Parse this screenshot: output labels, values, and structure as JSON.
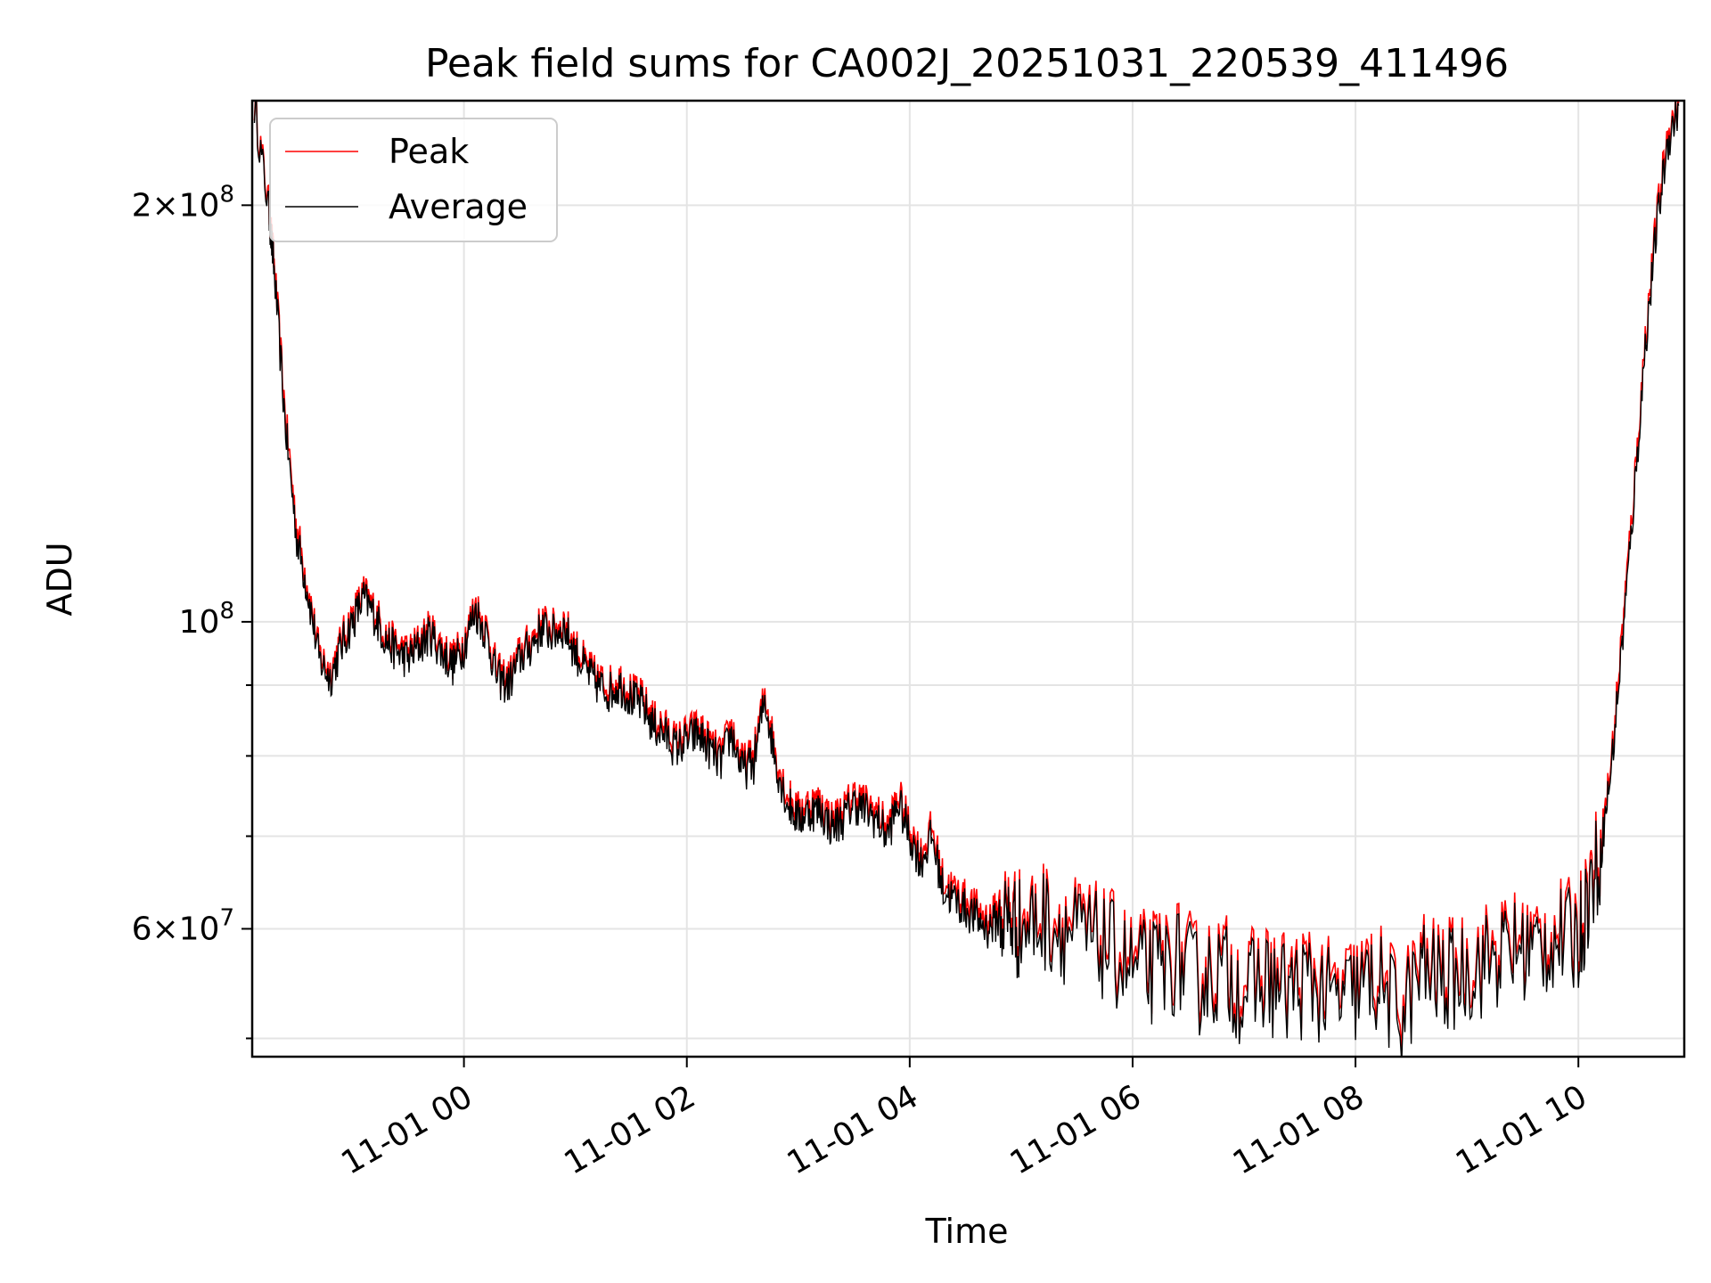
{
  "chart_data": {
    "type": "line",
    "title": "Peak field sums for CA002J_20251031_220539_411496",
    "xlabel": "Time",
    "ylabel": "ADU",
    "yscale": "log",
    "grid": true,
    "legend_position": "top-left",
    "xlim_hours": [
      -1.9,
      10.95
    ],
    "ylim": [
      48500000,
      238000000
    ],
    "x_ticks": [
      {
        "hour": 0,
        "label": "11-01 00"
      },
      {
        "hour": 2,
        "label": "11-01 02"
      },
      {
        "hour": 4,
        "label": "11-01 04"
      },
      {
        "hour": 6,
        "label": "11-01 06"
      },
      {
        "hour": 8,
        "label": "11-01 08"
      },
      {
        "hour": 10,
        "label": "11-01 10"
      }
    ],
    "y_major_ticks": [
      {
        "value": 60000000,
        "mantissa": "6",
        "exp": "7"
      },
      {
        "value": 100000000,
        "mantissa": "",
        "exp": "8"
      },
      {
        "value": 200000000,
        "mantissa": "2",
        "exp": "8"
      }
    ],
    "y_minor_ticks": [
      50000000,
      70000000,
      80000000,
      90000000
    ],
    "series": [
      {
        "name": "Peak",
        "color": "#ff0000",
        "x": [
          -1.88,
          -1.75,
          -1.7,
          -1.6,
          -1.5,
          -1.4,
          -1.3,
          -1.2,
          -1.1,
          -1.0,
          -0.9,
          -0.8,
          -0.7,
          -0.6,
          -0.5,
          -0.4,
          -0.3,
          -0.2,
          -0.1,
          0.0,
          0.1,
          0.2,
          0.3,
          0.4,
          0.5,
          0.6,
          0.7,
          0.8,
          0.9,
          1.0,
          1.1,
          1.2,
          1.3,
          1.4,
          1.5,
          1.6,
          1.7,
          1.8,
          1.9,
          2.0,
          2.1,
          2.2,
          2.3,
          2.4,
          2.5,
          2.6,
          2.7,
          2.8,
          2.9,
          3.0,
          3.1,
          3.2,
          3.3,
          3.4,
          3.5,
          3.6,
          3.7,
          3.8,
          3.9,
          4.0,
          4.1,
          4.2,
          4.3,
          4.4,
          4.5,
          4.6,
          4.7,
          4.8,
          4.9,
          5.0,
          5.2,
          5.4,
          5.6,
          5.8,
          6.0,
          6.2,
          6.4,
          6.6,
          6.8,
          7.0,
          7.2,
          7.4,
          7.6,
          7.8,
          8.0,
          8.2,
          8.4,
          8.6,
          8.8,
          9.0,
          9.2,
          9.4,
          9.6,
          9.8,
          10.0,
          10.1,
          10.2,
          10.3,
          10.4,
          10.5,
          10.6,
          10.7,
          10.8,
          10.9
        ],
        "values": [
          237000000,
          200000000,
          180000000,
          140000000,
          117000000,
          106000000,
          95000000,
          92000000,
          97000000,
          101000000,
          105000000,
          102000000,
          98000000,
          96000000,
          95000000,
          97000000,
          99000000,
          96000000,
          94000000,
          97000000,
          103000000,
          99000000,
          92000000,
          91000000,
          95000000,
          97000000,
          100000000,
          99000000,
          100000000,
          96000000,
          93000000,
          91000000,
          90000000,
          91000000,
          89000000,
          88000000,
          85000000,
          84000000,
          82000000,
          83000000,
          84000000,
          82000000,
          80000000,
          84000000,
          79000000,
          80000000,
          89000000,
          80000000,
          75000000,
          73000000,
          74000000,
          74000000,
          72000000,
          73000000,
          75000000,
          74000000,
          73000000,
          71000000,
          75000000,
          71000000,
          68000000,
          71000000,
          65000000,
          64000000,
          63000000,
          62000000,
          61000000,
          62000000,
          62000000,
          61000000,
          62000000,
          61000000,
          60000000,
          59000000,
          57000000,
          57000000,
          58000000,
          56000000,
          57000000,
          55000000,
          56000000,
          55000000,
          56000000,
          54000000,
          55000000,
          56000000,
          53000000,
          57000000,
          56000000,
          57000000,
          58000000,
          59000000,
          59000000,
          60000000,
          60000000,
          65000000,
          69000000,
          80000000,
          100000000,
          125000000,
          160000000,
          195000000,
          225000000,
          237000000
        ]
      },
      {
        "name": "Average",
        "color": "#000000",
        "x": [
          -1.88,
          -1.75,
          -1.7,
          -1.6,
          -1.5,
          -1.4,
          -1.3,
          -1.2,
          -1.1,
          -1.0,
          -0.9,
          -0.8,
          -0.7,
          -0.6,
          -0.5,
          -0.4,
          -0.3,
          -0.2,
          -0.1,
          0.0,
          0.1,
          0.2,
          0.3,
          0.4,
          0.5,
          0.6,
          0.7,
          0.8,
          0.9,
          1.0,
          1.1,
          1.2,
          1.3,
          1.4,
          1.5,
          1.6,
          1.7,
          1.8,
          1.9,
          2.0,
          2.1,
          2.2,
          2.3,
          2.4,
          2.5,
          2.6,
          2.7,
          2.8,
          2.9,
          3.0,
          3.1,
          3.2,
          3.3,
          3.4,
          3.5,
          3.6,
          3.7,
          3.8,
          3.9,
          4.0,
          4.1,
          4.2,
          4.3,
          4.4,
          4.5,
          4.6,
          4.7,
          4.8,
          4.9,
          5.0,
          5.2,
          5.4,
          5.6,
          5.8,
          6.0,
          6.2,
          6.4,
          6.6,
          6.8,
          7.0,
          7.2,
          7.4,
          7.6,
          7.8,
          8.0,
          8.2,
          8.4,
          8.6,
          8.8,
          9.0,
          9.2,
          9.4,
          9.6,
          9.8,
          10.0,
          10.1,
          10.2,
          10.3,
          10.4,
          10.5,
          10.6,
          10.7,
          10.8,
          10.9
        ],
        "values": [
          236000000,
          198000000,
          178000000,
          138000000,
          115000000,
          105000000,
          94000000,
          91000000,
          96000000,
          100000000,
          104000000,
          101000000,
          97000000,
          95000000,
          94000000,
          96000000,
          98000000,
          95000000,
          93000000,
          96000000,
          102000000,
          98000000,
          91000000,
          90000000,
          94000000,
          96000000,
          99000000,
          98000000,
          99000000,
          95000000,
          92000000,
          90000000,
          89000000,
          90000000,
          88000000,
          87000000,
          84000000,
          83000000,
          81000000,
          82000000,
          83000000,
          81000000,
          79000000,
          83000000,
          78000000,
          79000000,
          88000000,
          79000000,
          74000000,
          72000000,
          73000000,
          73000000,
          71000000,
          72000000,
          74000000,
          73000000,
          72000000,
          70000000,
          74000000,
          70000000,
          67000000,
          70000000,
          64000000,
          63000000,
          62000000,
          61000000,
          60000000,
          61000000,
          61000000,
          60000000,
          61000000,
          60000000,
          59000000,
          58000000,
          56000000,
          56000000,
          57000000,
          55000000,
          56000000,
          54000000,
          55000000,
          54000000,
          55000000,
          53000000,
          54000000,
          55000000,
          52000000,
          56000000,
          55000000,
          56000000,
          57000000,
          58000000,
          58000000,
          59000000,
          59000000,
          64000000,
          68000000,
          79000000,
          98000000,
          123000000,
          158000000,
          192000000,
          222000000,
          236000000
        ]
      }
    ]
  }
}
